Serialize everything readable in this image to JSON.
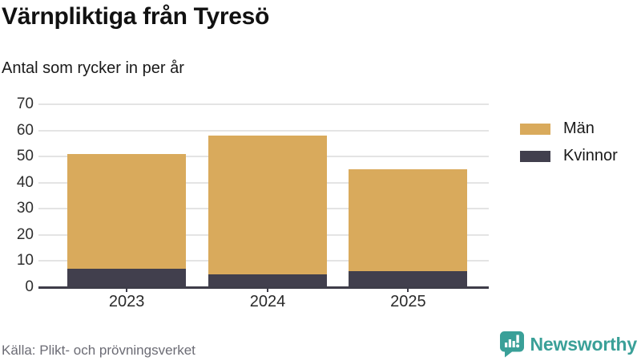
{
  "header": {
    "title": "Värnpliktiga från Tyresö",
    "subtitle": "Antal som rycker in per år"
  },
  "chart_data": {
    "type": "bar",
    "stacked": true,
    "title": "Värnpliktiga från Tyresö",
    "subtitle": "Antal som rycker in per år",
    "categories": [
      "2023",
      "2024",
      "2025"
    ],
    "series": [
      {
        "name": "Män",
        "color": "#d9aa5c",
        "values": [
          44,
          53,
          39
        ]
      },
      {
        "name": "Kvinnor",
        "color": "#413f4d",
        "values": [
          7,
          5,
          6
        ]
      }
    ],
    "stack_order_bottom_to_top": [
      "Kvinnor",
      "Män"
    ],
    "totals": [
      51,
      58,
      45
    ],
    "xlabel": "",
    "ylabel": "",
    "ylim": [
      0,
      70
    ],
    "yticks": [
      0,
      10,
      20,
      30,
      40,
      50,
      60,
      70
    ],
    "grid": "horizontal",
    "legend_position": "right"
  },
  "footer": {
    "source": "Källa: Plikt- och prövningsverket",
    "brand": "Newsworthy"
  },
  "colors": {
    "men": "#d9aa5c",
    "women": "#413f4d",
    "axis": "#3e3d49",
    "grid": "#e4e4e4",
    "brand_teal": "#3aa098",
    "source_text": "#6c6c75"
  }
}
